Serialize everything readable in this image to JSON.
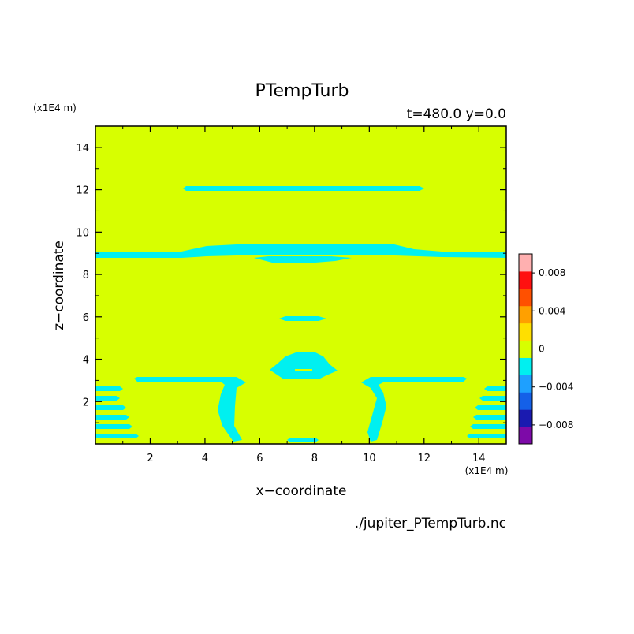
{
  "chart_data": {
    "type": "heatmap",
    "title": "PTempTurb",
    "subtitle": "t=480.0 y=0.0",
    "xlabel": "x−coordinate",
    "ylabel": "z−coordinate",
    "x_unit": "(x1E4 m)",
    "y_unit": "(x1E4 m)",
    "source_file": "./jupiter_PTempTurb.nc",
    "xlim": [
      0,
      15
    ],
    "ylim": [
      0,
      15
    ],
    "x_ticks": [
      2,
      4,
      6,
      8,
      10,
      12,
      14
    ],
    "y_ticks": [
      2,
      4,
      6,
      8,
      10,
      12,
      14
    ],
    "background_level": "0",
    "colorbar": {
      "levels": [
        -0.01,
        -0.008,
        -0.006,
        -0.004,
        -0.002,
        0,
        0.002,
        0.004,
        0.006,
        0.008,
        0.01
      ],
      "colors": [
        "#7d0aa8",
        "#1a1ab0",
        "#1460e8",
        "#1ea0ff",
        "#00f0f0",
        "#d7ff00",
        "#ffdf00",
        "#ffa000",
        "#ff5000",
        "#ff1010",
        "#ffb0b0"
      ],
      "tick_labels": [
        "0.008",
        "0.004",
        "0",
        "−0.004",
        "−0.008"
      ],
      "tick_values": [
        0.008,
        0.004,
        0,
        -0.004,
        -0.008
      ]
    },
    "features": [
      {
        "name": "band",
        "level": "-0.002..0",
        "x": [
          3.3,
          11.9
        ],
        "z": [
          11.95,
          12.1
        ]
      },
      {
        "name": "band",
        "level": "-0.002..0",
        "x": [
          0.0,
          15.0
        ],
        "z": [
          8.8,
          9.4
        ]
      },
      {
        "name": "band",
        "level": "-0.002..0",
        "x": [
          5.9,
          9.2
        ],
        "z": [
          8.5,
          8.8
        ]
      },
      {
        "name": "blob",
        "level": "-0.002..0",
        "x": [
          6.8,
          7.9
        ],
        "z": [
          5.8,
          6.0
        ]
      },
      {
        "name": "blob",
        "level": "-0.002..0",
        "x": [
          6.6,
          8.8
        ],
        "z": [
          3.1,
          4.3
        ]
      },
      {
        "name": "band",
        "level": "-0.002..0",
        "x": [
          1.5,
          5.6
        ],
        "z": [
          3.1,
          3.2
        ]
      },
      {
        "name": "band",
        "level": "-0.002..0",
        "x": [
          9.6,
          13.5
        ],
        "z": [
          3.1,
          3.2
        ]
      },
      {
        "name": "plume",
        "level": "-0.002..0",
        "x": [
          4.5,
          5.6
        ],
        "z": [
          0.1,
          3.1
        ]
      },
      {
        "name": "plume",
        "level": "-0.002..0",
        "x": [
          9.6,
          10.7
        ],
        "z": [
          0.1,
          3.1
        ]
      },
      {
        "name": "streaks",
        "level": "-0.002..0",
        "x": [
          0.0,
          1.5
        ],
        "z": [
          0.1,
          2.7
        ]
      },
      {
        "name": "streaks",
        "level": "-0.002..0",
        "x": [
          13.7,
          15.0
        ],
        "z": [
          0.1,
          2.7
        ]
      },
      {
        "name": "blob",
        "level": "-0.002..0",
        "x": [
          7.0,
          8.0
        ],
        "z": [
          0.1,
          0.3
        ]
      }
    ]
  }
}
